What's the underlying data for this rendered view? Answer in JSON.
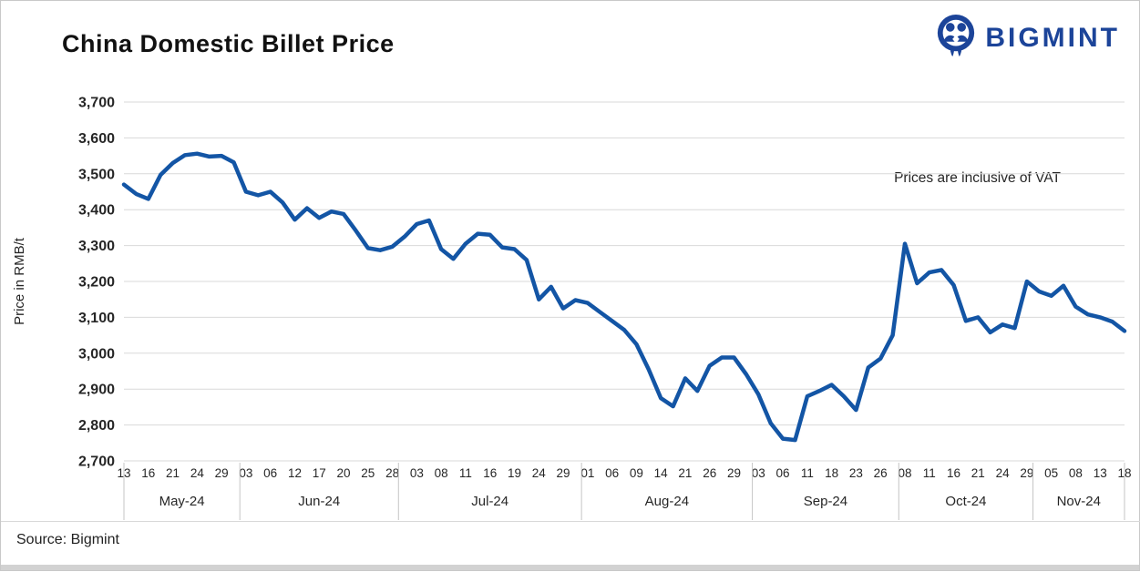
{
  "page": {
    "title": "China Domestic Billet Price",
    "logo_text": "BIGMINT",
    "annotation": "Prices are inclusive of VAT",
    "source": "Source: Bigmint"
  },
  "chart_data": {
    "type": "line",
    "title": "China Domestic Billet Price",
    "ylabel": "Price in RMB/t",
    "ylim": [
      2700,
      3700
    ],
    "ytick_step": 100,
    "grid": "horizontal",
    "legend": "none",
    "line_color": "#1355a5",
    "months": [
      {
        "label": "May-24",
        "ticks": [
          "13",
          "16",
          "21",
          "24",
          "29"
        ],
        "start": 0,
        "end": 9.5
      },
      {
        "label": "Jun-24",
        "ticks": [
          "03",
          "06",
          "12",
          "17",
          "20",
          "25",
          "28"
        ],
        "start": 9.5,
        "end": 22.5
      },
      {
        "label": "Jul-24",
        "ticks": [
          "03",
          "08",
          "11",
          "16",
          "19",
          "24",
          "29"
        ],
        "start": 22.5,
        "end": 37.5
      },
      {
        "label": "Aug-24",
        "ticks": [
          "01",
          "06",
          "09",
          "14",
          "21",
          "26",
          "29"
        ],
        "start": 37.5,
        "end": 51.5
      },
      {
        "label": "Sep-24",
        "ticks": [
          "03",
          "06",
          "11",
          "18",
          "23",
          "26"
        ],
        "start": 51.5,
        "end": 63.5
      },
      {
        "label": "Oct-24",
        "ticks": [
          "08",
          "11",
          "16",
          "21",
          "24",
          "29"
        ],
        "start": 63.5,
        "end": 74.5
      },
      {
        "label": "Nov-24",
        "ticks": [
          "05",
          "08",
          "13",
          "18"
        ],
        "start": 74.5,
        "end": 82
      }
    ],
    "x_labels": [
      "13",
      "",
      "16",
      "",
      "21",
      "",
      "24",
      "",
      "29",
      "",
      "03",
      "",
      "06",
      "",
      "12",
      "",
      "17",
      "",
      "20",
      "",
      "25",
      "",
      "28",
      "",
      "03",
      "",
      "08",
      "",
      "11",
      "",
      "16",
      "",
      "19",
      "",
      "24",
      "",
      "29",
      "",
      "01",
      "",
      "06",
      "",
      "09",
      "",
      "14",
      "",
      "21",
      "",
      "26",
      "",
      "29",
      "",
      "03",
      "",
      "06",
      "",
      "11",
      "",
      "18",
      "",
      "23",
      "",
      "26",
      "",
      "08",
      "",
      "11",
      "",
      "16",
      "",
      "21",
      "",
      "24",
      "",
      "29",
      "",
      "05",
      "",
      "08",
      "",
      "13",
      "",
      "18"
    ],
    "values": [
      3470,
      3444,
      3430,
      3497,
      3530,
      3552,
      3556,
      3548,
      3550,
      3532,
      3450,
      3440,
      3450,
      3420,
      3372,
      3404,
      3377,
      3395,
      3388,
      3342,
      3293,
      3287,
      3297,
      3325,
      3360,
      3370,
      3290,
      3263,
      3305,
      3333,
      3330,
      3295,
      3290,
      3260,
      3150,
      3185,
      3125,
      3148,
      3140,
      3115,
      3090,
      3065,
      3025,
      2955,
      2875,
      2852,
      2930,
      2895,
      2965,
      2988,
      2988,
      2941,
      2885,
      2805,
      2762,
      2758,
      2880,
      2895,
      2912,
      2880,
      2842,
      2960,
      2985,
      3050,
      3305,
      3195,
      3225,
      3232,
      3190,
      3090,
      3100,
      3058,
      3080,
      3070,
      3200,
      3172,
      3160,
      3188,
      3130,
      3108,
      3100,
      3088,
      3062
    ],
    "annotation": "Prices are inclusive of VAT"
  }
}
